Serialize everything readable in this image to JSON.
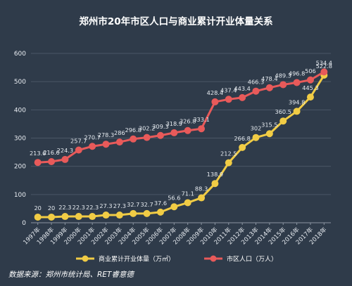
{
  "chart_data": {
    "type": "line",
    "title": "郑州市20年市区人口与商业累计开业体量关系",
    "x": [
      "1997年",
      "1998年",
      "1999年",
      "2000年",
      "2001年",
      "2002年",
      "2003年",
      "2004年",
      "2005年",
      "2006年",
      "2007年",
      "2008年",
      "2009年",
      "2010年",
      "2011年",
      "2012年",
      "2013年",
      "2014年",
      "2015年",
      "2016年",
      "2017年",
      "2018年"
    ],
    "ylim": [
      0,
      600
    ],
    "yticks": [
      0,
      100,
      200,
      300,
      400,
      500,
      600
    ],
    "grid": true,
    "legend_position": "bottom",
    "series": [
      {
        "name": "商业累计开业体量（万㎡）",
        "color": "#f1cc45",
        "values": [
          20,
          20,
          22.3,
          22.3,
          22.3,
          27.3,
          27.3,
          32.7,
          32.7,
          37.6,
          56.6,
          71.1,
          88.3,
          138.9,
          212.5,
          266.8,
          302,
          315.5,
          360.5,
          394.8,
          445.3,
          522.8
        ],
        "labels": [
          "20",
          "20",
          "22.3",
          "22.3",
          "22.3",
          "27.3",
          "27.3",
          "32.7",
          "32.7",
          "37.6",
          "56.6",
          "71.1",
          "88.3",
          "138.9",
          "212.5",
          "266.8",
          "302",
          "315.5",
          "360.5",
          "394.8",
          "445.3",
          "522.8"
        ]
      },
      {
        "name": "市区人口（万人）",
        "color": "#e85a5a",
        "values": [
          213.6,
          216.6,
          224.3,
          257.7,
          270.7,
          278.3,
          286,
          296.8,
          302.2,
          309.3,
          318.9,
          326.8,
          333.1,
          428.4,
          437.4,
          443.4,
          466.3,
          478.4,
          489.3,
          496.8,
          506,
          534.4
        ],
        "labels": [
          "213.6",
          "216.6",
          "224.3",
          "257.7",
          "270.7",
          "278.3",
          "286",
          "296.8",
          "302.2",
          "309.3",
          "318.9",
          "326.8",
          "333.1",
          "428.4",
          "437.4",
          "443.4",
          "466.3",
          "478.4",
          "489.3",
          "496.8",
          "506",
          "534.4"
        ]
      }
    ]
  },
  "source": "数据来源：郑州市统计局、RET睿意德"
}
